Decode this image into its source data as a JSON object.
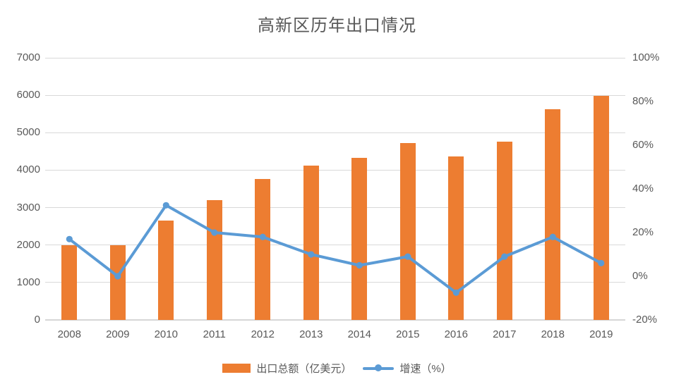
{
  "title": "高新区历年出口情况",
  "legend": {
    "items": [
      {
        "label": "出口总额（亿美元）",
        "swatch": "bar",
        "color": "#ED7D31"
      },
      {
        "label": "增速（%）",
        "swatch": "line",
        "color": "#5B9BD5"
      }
    ]
  },
  "colors": {
    "bar": "#ED7D31",
    "line": "#5B9BD5",
    "text": "#595959",
    "gridline": "#d9d9d9"
  },
  "chart_data": {
    "type": "combo",
    "title": "高新区历年出口情况",
    "categories": [
      "2008",
      "2009",
      "2010",
      "2011",
      "2012",
      "2013",
      "2014",
      "2015",
      "2016",
      "2017",
      "2018",
      "2019"
    ],
    "series": [
      {
        "name": "出口总额（亿美元）",
        "type": "bar",
        "axis": "left",
        "color": "#ED7D31",
        "values": [
          2000,
          2000,
          2650,
          3190,
          3770,
          4130,
          4330,
          4730,
          4370,
          4770,
          5630,
          5990
        ]
      },
      {
        "name": "增速（%）",
        "type": "line",
        "axis": "right",
        "color": "#5B9BD5",
        "values": [
          17,
          0,
          32.5,
          20,
          18,
          10,
          5,
          9,
          -7.5,
          9,
          18,
          6
        ]
      }
    ],
    "left_axis": {
      "min": 0,
      "max": 7000,
      "step": 1000,
      "tick_labels": [
        "0",
        "1000",
        "2000",
        "3000",
        "4000",
        "5000",
        "6000",
        "7000"
      ]
    },
    "right_axis": {
      "min": -20,
      "max": 100,
      "step": 20,
      "tick_labels": [
        "-20%",
        "0%",
        "20%",
        "40%",
        "60%",
        "80%",
        "100%"
      ]
    },
    "grid": true,
    "legend_position": "bottom"
  }
}
